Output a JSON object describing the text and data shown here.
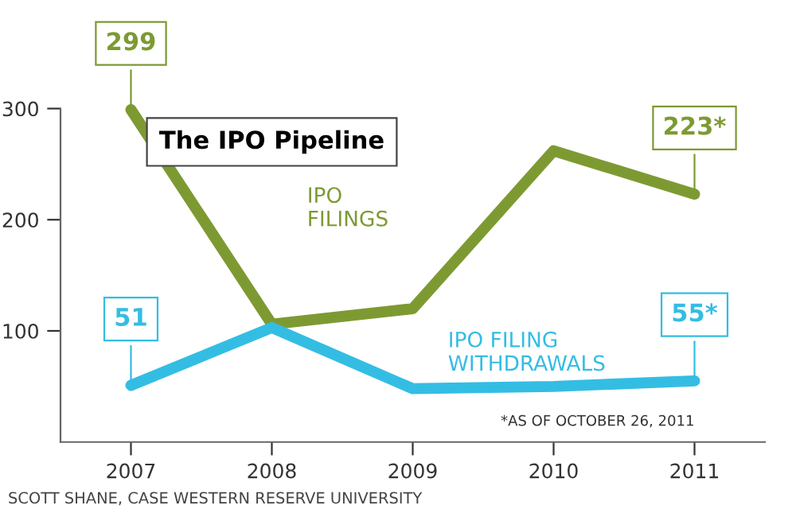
{
  "chart_data": {
    "type": "line",
    "title": "The IPO Pipeline",
    "x": [
      2007,
      2008,
      2009,
      2010,
      2011
    ],
    "series": [
      {
        "name": "IPO\nFILINGS",
        "color": "#7d9a32",
        "values": [
          299,
          106,
          120,
          262,
          223
        ],
        "value_labels": [
          "299",
          null,
          null,
          null,
          "223*"
        ]
      },
      {
        "name": "IPO FILING\nWITHDRAWALS",
        "color": "#34bde3",
        "values": [
          51,
          103,
          48,
          50,
          55
        ],
        "value_labels": [
          "51",
          null,
          null,
          null,
          "55*"
        ]
      }
    ],
    "xlim": [
      2006.5,
      2011.5
    ],
    "xticks": [
      2007,
      2008,
      2009,
      2010,
      2011
    ],
    "ylim": [
      0,
      300
    ],
    "yticks": [
      100,
      200,
      300
    ],
    "grid": false,
    "legend": false,
    "marker": "none",
    "line_style": "solid",
    "annotations": [
      "*AS OF OCTOBER 26, 2011",
      "SCOTT SHANE, CASE WESTERN RESERVE UNIVERSITY"
    ]
  }
}
